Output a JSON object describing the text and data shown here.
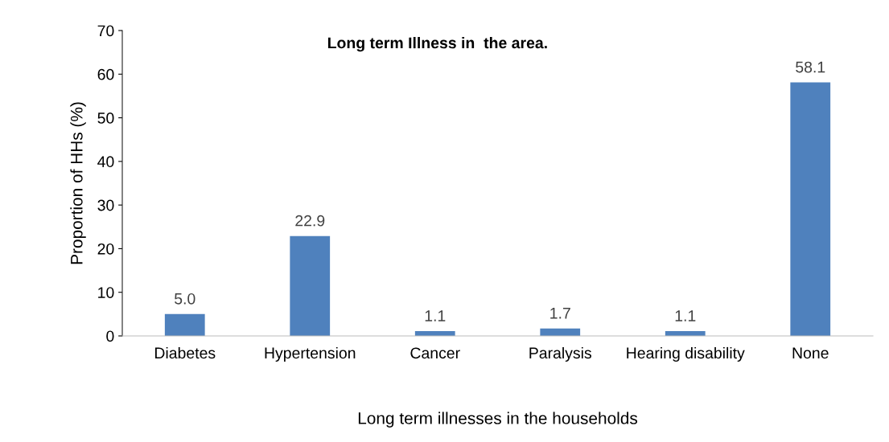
{
  "chart_data": {
    "type": "bar",
    "title": "Long term Illness in  the area.",
    "xlabel": "Long term illnesses in the households",
    "ylabel": "Proportion of HHs (%)",
    "categories": [
      "Diabetes",
      "Hypertension",
      "Cancer",
      "Paralysis",
      "Hearing disability",
      "None"
    ],
    "values": [
      5.0,
      22.9,
      1.1,
      1.7,
      1.1,
      58.1
    ],
    "value_labels": [
      "5.0",
      "22.9",
      "1.1",
      "1.7",
      "1.1",
      "58.1"
    ],
    "color": "#4f81bd",
    "ylim": [
      0,
      70
    ],
    "yticks": [
      0,
      10,
      20,
      30,
      40,
      50,
      60,
      70
    ],
    "grid": false,
    "legend": false
  }
}
